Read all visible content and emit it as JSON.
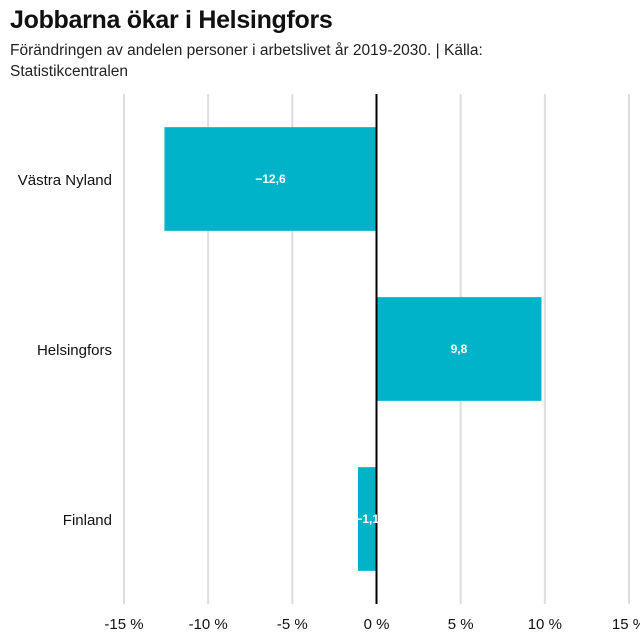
{
  "chart_data": {
    "type": "bar",
    "orientation": "horizontal",
    "title": "Jobbarna ökar i Helsingfors",
    "subtitle": "Förändringen av andelen personer i arbetslivet år 2019-2030. | Källa: Statistikcentralen",
    "categories": [
      "Västra Nyland",
      "Helsingfors",
      "Finland"
    ],
    "values": [
      -12.6,
      9.8,
      -1.1
    ],
    "data_labels": [
      "−12,6",
      "9,8",
      "−1,1"
    ],
    "xlim": [
      -15,
      15
    ],
    "ticks": [
      -15,
      -10,
      -5,
      0,
      5,
      10,
      15
    ],
    "tick_labels": [
      "-15 %",
      "-10 %",
      "-5 %",
      "0 %",
      "5 %",
      "10 %",
      "15 %"
    ],
    "grid": true,
    "bar_color": "#00b3c8",
    "zero_line_color": "#000000",
    "grid_color": "#dddddd"
  }
}
